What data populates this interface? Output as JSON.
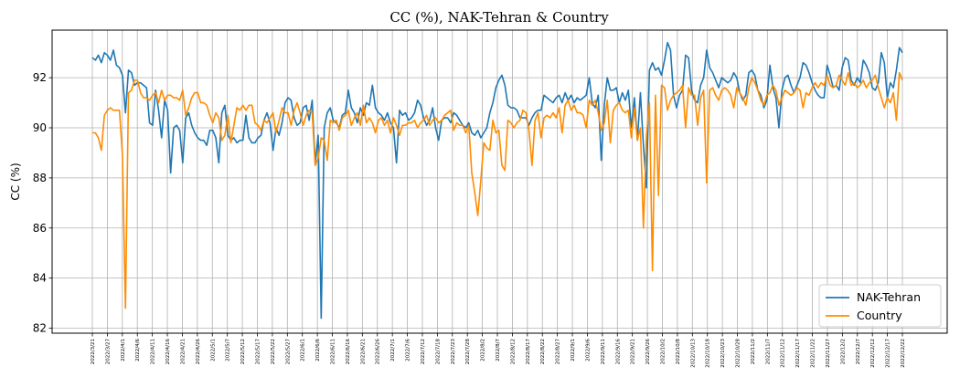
{
  "chart_data": {
    "type": "line",
    "title": "CC (%), NAK-Tehran & Country",
    "xlabel": "",
    "ylabel": "CC (%)",
    "ylim": [
      81.8,
      93.9
    ],
    "yticks": [
      82,
      84,
      86,
      88,
      90,
      92
    ],
    "grid": true,
    "legend_position": "bottom-right",
    "xtick_labels": [
      "2022/3/21",
      "2022/3/27",
      "2022/4/1",
      "2022/4/6",
      "2022/4/11",
      "2022/4/16",
      "2022/4/21",
      "2022/4/26",
      "2022/5/1",
      "2022/5/7",
      "2022/5/12",
      "2022/5/17",
      "2022/5/22",
      "2022/5/27",
      "2022/6/1",
      "2022/6/6",
      "2022/6/11",
      "2022/6/16",
      "2022/6/21",
      "2022/6/26",
      "2022/7/1",
      "2022/7/6",
      "2022/7/12",
      "2022/7/18",
      "2022/7/23",
      "2022/7/28",
      "2022/8/2",
      "2022/8/7",
      "2022/8/12",
      "2022/8/17",
      "2022/8/22",
      "2022/8/27",
      "2022/9/1",
      "2022/9/6",
      "2022/9/11",
      "2022/9/16",
      "2022/9/21",
      "2022/9/26",
      "2022/10/2",
      "2022/10/8",
      "2022/10/13",
      "2022/10/18",
      "2022/10/23",
      "2022/10/28",
      "2022/11/2",
      "2022/11/7",
      "2022/11/12",
      "2022/11/17",
      "2022/11/22",
      "2022/11/27",
      "2022/12/2",
      "2022/12/7",
      "2022/12/12",
      "2022/12/17",
      "2022/12/22"
    ],
    "series": [
      {
        "name": "NAK-Tehran",
        "color": "#1f77b4",
        "values": [
          92.8,
          92.7,
          92.9,
          92.6,
          93.0,
          92.9,
          92.7,
          93.1,
          92.5,
          92.4,
          92.1,
          90.6,
          92.3,
          92.2,
          91.7,
          91.8,
          91.8,
          91.7,
          91.6,
          90.2,
          90.1,
          91.5,
          90.7,
          89.6,
          91.1,
          90.7,
          88.2,
          90.0,
          90.1,
          89.9,
          88.6,
          90.4,
          90.6,
          90.1,
          89.8,
          89.6,
          89.5,
          89.5,
          89.3,
          89.9,
          89.9,
          89.6,
          88.6,
          90.6,
          90.9,
          89.7,
          89.5,
          89.6,
          89.4,
          89.5,
          89.5,
          90.5,
          89.6,
          89.4,
          89.4,
          89.6,
          89.7,
          90.3,
          90.6,
          90.2,
          89.1,
          90.0,
          89.7,
          90.2,
          91.0,
          91.2,
          91.1,
          90.4,
          90.1,
          90.2,
          90.8,
          90.9,
          90.3,
          91.1,
          88.6,
          89.7,
          82.4,
          90.0,
          90.6,
          90.8,
          90.3,
          90.2,
          90.0,
          90.5,
          90.6,
          91.5,
          90.8,
          90.6,
          90.2,
          90.8,
          90.5,
          91.0,
          90.9,
          91.7,
          90.8,
          90.6,
          90.5,
          90.3,
          90.6,
          90.2,
          90.0,
          88.6,
          90.7,
          90.5,
          90.6,
          90.3,
          90.4,
          90.6,
          91.1,
          90.9,
          90.4,
          90.1,
          90.3,
          90.8,
          90.0,
          89.5,
          90.3,
          90.4,
          90.4,
          90.2,
          90.6,
          90.5,
          90.3,
          90.1,
          90.0,
          90.2,
          89.8,
          89.7,
          89.9,
          89.6,
          89.8,
          90.0,
          90.6,
          91.0,
          91.6,
          91.9,
          92.1,
          91.7,
          90.9,
          90.8,
          90.8,
          90.7,
          90.4,
          90.4,
          90.4,
          90.1,
          90.4,
          90.6,
          90.7,
          90.7,
          91.3,
          91.2,
          91.1,
          91.0,
          91.2,
          91.3,
          91.0,
          91.4,
          91.1,
          91.3,
          91.0,
          91.2,
          91.1,
          91.2,
          91.3,
          92.0,
          91.0,
          90.8,
          91.3,
          88.7,
          90.9,
          92.0,
          91.5,
          91.5,
          91.6,
          91.0,
          91.4,
          91.1,
          91.5,
          90.0,
          91.2,
          89.5,
          91.4,
          89.3,
          87.6,
          92.3,
          92.6,
          92.3,
          92.4,
          92.1,
          92.7,
          93.4,
          93.1,
          91.3,
          90.8,
          91.3,
          91.5,
          92.9,
          92.8,
          91.5,
          91.1,
          91.0,
          91.7,
          92.0,
          93.1,
          92.4,
          92.2,
          91.9,
          91.6,
          92.0,
          91.9,
          91.8,
          91.9,
          92.2,
          92.0,
          91.4,
          91.1,
          91.3,
          92.2,
          92.3,
          92.1,
          91.5,
          91.3,
          90.8,
          91.1,
          92.5,
          91.6,
          91.2,
          90.0,
          91.5,
          92.0,
          92.1,
          91.7,
          91.4,
          91.7,
          92.0,
          92.6,
          92.5,
          92.2,
          91.8,
          91.5,
          91.3,
          91.2,
          91.2,
          92.5,
          92.1,
          91.6,
          91.7,
          91.5,
          92.4,
          92.8,
          92.7,
          91.9,
          91.7,
          92.0,
          91.8,
          92.7,
          92.5,
          92.2,
          91.6,
          91.5,
          91.8,
          93.0,
          92.6,
          91.2,
          91.8,
          91.6,
          92.3,
          93.2,
          93.0
        ]
      },
      {
        "name": "Country",
        "color": "#ff8c00",
        "values": [
          89.8,
          89.8,
          89.6,
          89.1,
          90.5,
          90.7,
          90.8,
          90.7,
          90.7,
          90.7,
          88.9,
          82.8,
          91.4,
          91.5,
          91.9,
          91.9,
          91.4,
          91.2,
          91.2,
          91.1,
          91.3,
          91.4,
          91.0,
          91.5,
          91.1,
          91.3,
          91.3,
          91.2,
          91.2,
          91.1,
          91.5,
          90.5,
          90.8,
          91.2,
          91.4,
          91.4,
          91.0,
          91.0,
          90.9,
          90.5,
          90.2,
          90.6,
          90.4,
          89.5,
          89.7,
          90.5,
          89.4,
          90.1,
          90.8,
          90.7,
          90.9,
          90.7,
          90.9,
          90.9,
          90.2,
          90.1,
          89.9,
          90.3,
          90.2,
          90.4,
          90.6,
          89.8,
          90.3,
          90.8,
          90.6,
          90.6,
          90.1,
          90.7,
          91.0,
          90.6,
          90.1,
          90.5,
          90.7,
          90.6,
          88.5,
          88.8,
          89.6,
          89.5,
          88.7,
          90.3,
          90.2,
          90.3,
          89.9,
          90.4,
          90.5,
          90.7,
          90.1,
          90.4,
          90.6,
          90.1,
          90.9,
          90.2,
          90.4,
          90.2,
          89.8,
          90.3,
          90.4,
          90.1,
          90.3,
          89.8,
          90.4,
          90.1,
          89.7,
          90.1,
          90.1,
          90.2,
          90.2,
          90.3,
          90.0,
          90.2,
          90.3,
          90.5,
          90.1,
          90.3,
          90.4,
          90.2,
          90.3,
          90.5,
          90.6,
          90.7,
          89.9,
          90.2,
          90.1,
          90.1,
          89.8,
          90.1,
          88.2,
          87.4,
          86.5,
          87.9,
          89.4,
          89.2,
          89.1,
          90.3,
          89.8,
          89.9,
          88.5,
          88.3,
          90.3,
          90.2,
          90.0,
          90.2,
          90.3,
          90.7,
          90.6,
          89.9,
          88.5,
          90.3,
          90.6,
          89.6,
          90.4,
          90.5,
          90.4,
          90.6,
          90.4,
          90.8,
          89.8,
          90.9,
          91.1,
          90.7,
          90.9,
          90.6,
          90.6,
          90.5,
          90.0,
          91.1,
          90.9,
          91.1,
          90.6,
          89.9,
          90.2,
          91.1,
          89.4,
          90.7,
          90.9,
          91.0,
          90.7,
          90.6,
          90.7,
          89.6,
          90.8,
          89.5,
          90.0,
          86.0,
          89.7,
          91.0,
          84.3,
          91.3,
          87.3,
          91.7,
          91.6,
          90.7,
          91.1,
          91.3,
          91.4,
          91.5,
          91.7,
          90.0,
          91.6,
          91.3,
          91.3,
          90.1,
          91.2,
          91.5,
          87.8,
          91.5,
          91.6,
          91.3,
          91.1,
          91.5,
          91.6,
          91.5,
          91.3,
          90.8,
          91.6,
          91.4,
          91.2,
          90.9,
          91.6,
          92.0,
          91.8,
          91.5,
          91.1,
          90.9,
          91.3,
          91.4,
          91.7,
          91.5,
          90.9,
          91.2,
          91.5,
          91.4,
          91.3,
          91.4,
          91.6,
          91.5,
          90.8,
          91.4,
          91.3,
          91.6,
          91.8,
          91.6,
          91.8,
          91.7,
          92.1,
          91.7,
          91.6,
          91.7,
          92.1,
          91.9,
          91.7,
          92.2,
          91.7,
          91.8,
          91.6,
          91.7,
          91.9,
          91.6,
          91.8,
          91.9,
          92.1,
          91.6,
          91.2,
          90.8,
          91.2,
          91.0,
          91.4,
          90.3,
          92.2,
          91.9
        ]
      }
    ]
  }
}
